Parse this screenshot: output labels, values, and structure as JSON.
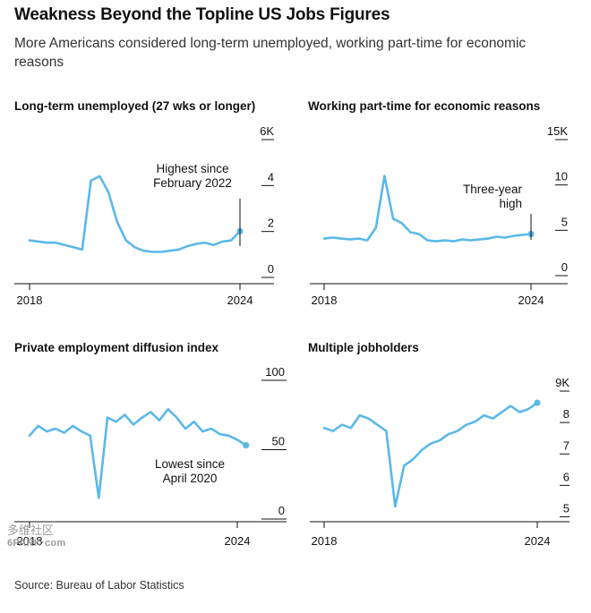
{
  "header": {
    "title": "Weakness Beyond the Topline US Jobs Figures",
    "subtitle": "More Americans considered long-term unemployed, working part-time for economic reasons"
  },
  "source": "Source: Bureau of Labor Statistics",
  "watermark": {
    "line1": "多维社区",
    "line2": "6PARK·com"
  },
  "colors": {
    "line": "#5bb8e8",
    "axis": "#111111",
    "text": "#111111"
  },
  "chart_data": [
    {
      "type": "line",
      "title": "Long-term unemployed (27 wks or longer)",
      "x_start": 2018.0,
      "x_step": 0.25,
      "xticks": [
        2018,
        2024
      ],
      "xtick_labels": [
        "2018",
        "2024"
      ],
      "yticks": [
        0,
        2,
        4,
        6
      ],
      "ytick_labels": [
        "0",
        "2",
        "4",
        "6K"
      ],
      "ylim": [
        0,
        6
      ],
      "values": [
        1.3,
        1.25,
        1.2,
        1.2,
        1.1,
        1.0,
        0.9,
        3.9,
        4.1,
        3.4,
        2.1,
        1.3,
        1.0,
        0.85,
        0.8,
        0.8,
        0.85,
        0.9,
        1.05,
        1.15,
        1.2,
        1.1,
        1.25,
        1.3,
        1.7
      ],
      "annotation": {
        "text": [
          "Highest since",
          "February 2022"
        ]
      }
    },
    {
      "type": "line",
      "title": "Working part-time for economic reasons",
      "x_start": 2018.0,
      "x_step": 0.25,
      "xticks": [
        2018,
        2024
      ],
      "xtick_labels": [
        "2018",
        "2024"
      ],
      "yticks": [
        0,
        5,
        10,
        15
      ],
      "ytick_labels": [
        "0",
        "5",
        "10",
        "15K"
      ],
      "ylim": [
        0,
        15
      ],
      "values": [
        3.3,
        3.4,
        3.3,
        3.2,
        3.3,
        3.1,
        4.5,
        10.2,
        5.5,
        5.0,
        4.0,
        3.8,
        3.1,
        3.0,
        3.1,
        3.0,
        3.2,
        3.1,
        3.2,
        3.3,
        3.5,
        3.4,
        3.6,
        3.7,
        3.8
      ],
      "annotation": {
        "text": [
          "Three-year",
          "high"
        ]
      }
    },
    {
      "type": "line",
      "title": "Private employment diffusion index",
      "x_start": 2018.0,
      "x_step": 0.25,
      "xticks": [
        2018,
        2024
      ],
      "xtick_labels": [
        "2018",
        "2024"
      ],
      "yticks": [
        0,
        50,
        100
      ],
      "ytick_labels": [
        "0",
        "50",
        "100"
      ],
      "ylim": [
        0,
        100
      ],
      "values": [
        55,
        62,
        58,
        60,
        57,
        62,
        58,
        55,
        10,
        68,
        65,
        70,
        63,
        68,
        72,
        66,
        74,
        68,
        60,
        65,
        58,
        60,
        56,
        55,
        52,
        48
      ],
      "annotation": {
        "text": [
          "Lowest since",
          "April 2020"
        ]
      }
    },
    {
      "type": "line",
      "title": "Multiple jobholders",
      "x_start": 2018.0,
      "x_step": 0.25,
      "xticks": [
        2018,
        2024
      ],
      "xtick_labels": [
        "2018",
        "2024"
      ],
      "yticks": [
        5,
        6,
        7,
        8,
        9
      ],
      "ytick_labels": [
        "5",
        "6",
        "7",
        "8",
        "9K"
      ],
      "ylim": [
        4.7,
        9.4
      ],
      "values": [
        7.6,
        7.5,
        7.7,
        7.6,
        8.0,
        7.9,
        7.7,
        7.5,
        5.1,
        6.4,
        6.6,
        6.9,
        7.1,
        7.2,
        7.4,
        7.5,
        7.7,
        7.8,
        8.0,
        7.9,
        8.1,
        8.3,
        8.1,
        8.2,
        8.4
      ]
    }
  ]
}
